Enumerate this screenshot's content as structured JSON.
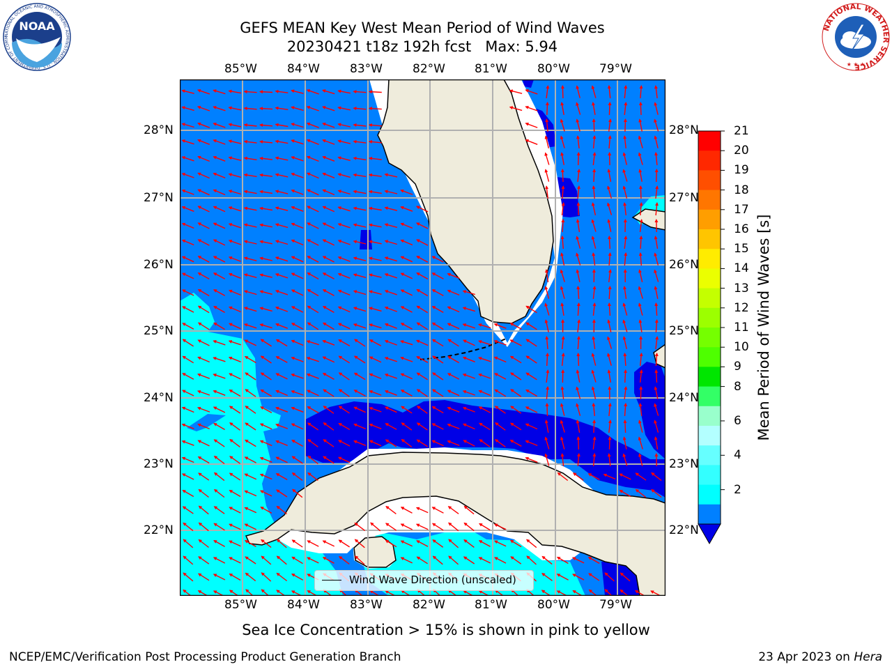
{
  "title": {
    "line1": "GEFS MEAN Key West Mean Period of Wind Waves",
    "line2": "20230421 t18z 192h fcst   Max: 5.94"
  },
  "map": {
    "lon_labels": [
      "85°W",
      "84°W",
      "83°W",
      "82°W",
      "81°W",
      "80°W",
      "79°W"
    ],
    "lat_labels": [
      "28°N",
      "27°N",
      "26°N",
      "25°N",
      "24°N",
      "23°N",
      "22°N"
    ],
    "land_color": "#efecdc",
    "ocean_base_color": "#0080ff",
    "arrow_color": "#ff0000",
    "legend_label": "Wind Wave Direction (unscaled)"
  },
  "colorbar": {
    "title": "Mean Period of Wind Waves [s]",
    "ticks": [
      "21",
      "20",
      "19",
      "18",
      "17",
      "16",
      "15",
      "14",
      "13",
      "12",
      "11",
      "10",
      "9",
      "8",
      "6",
      "4",
      "2"
    ],
    "colors": [
      "#ff0000",
      "#ff2800",
      "#ff4f00",
      "#ff7600",
      "#ff9e00",
      "#ffc500",
      "#ffec00",
      "#ebff00",
      "#c4ff00",
      "#9cff00",
      "#75ff00",
      "#4eff00",
      "#00e600",
      "#33ff66",
      "#99ffcc",
      "#b3ffff",
      "#66ffff",
      "#33ffff",
      "#00ffff",
      "#0080ff"
    ],
    "extend_color": "#0000e6"
  },
  "logos": {
    "noaa": "NOAA",
    "noaa_ring": "NATIONAL OCEANIC AND ATMOSPHERIC ADMINISTRATION · U.S. DEPARTMENT OF COMMERCE",
    "nws_ring": "NATIONAL WEATHER SERVICE"
  },
  "footer": {
    "note": "Sea Ice Concentration > 15% is shown in pink to yellow",
    "credit": "NCEP/EMC/Verification Post Processing Product Generation Branch",
    "date": "23 Apr 2023 on",
    "host": "Hera"
  }
}
